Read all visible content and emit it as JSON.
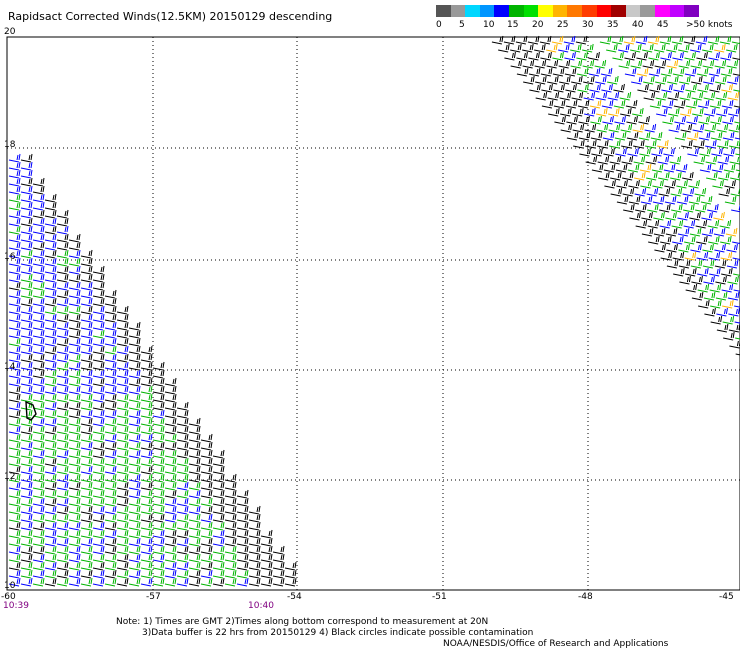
{
  "title": "Rapidsact Corrected Winds(12.5KM) 20150129 descending",
  "legend": {
    "swatches": [
      "#555555",
      "#999999",
      "#00d7ff",
      "#0096ff",
      "#0000ff",
      "#00b400",
      "#00e000",
      "#ffff00",
      "#ffb400",
      "#ff7800",
      "#ff3c00",
      "#ff0000",
      "#a00000",
      "#c8c8c8",
      "#9a9a9a",
      "#ff00ff",
      "#c000ff",
      "#8000c0"
    ],
    "labels": [
      "0",
      "5",
      "10",
      "15",
      "20",
      "25",
      "30",
      "35",
      "40",
      "45",
      ">50 knots"
    ]
  },
  "axes": {
    "lat_labels": [
      "20",
      "18",
      "16",
      "14",
      "12",
      "10"
    ],
    "lon_labels": [
      "-60",
      "-57",
      "-54",
      "-51",
      "-48",
      "-45"
    ]
  },
  "times": [
    "10:39",
    "10:40"
  ],
  "notes": {
    "line1": "Note: 1) Times are GMT 2)Times along bottom correspond to measurement at 20N",
    "line2": "3)Data buffer is 22 hrs from 20150129 4) Black circles indicate possible contamination",
    "credit": "NOAA/NESDIS/Office of Research and Applications"
  }
}
